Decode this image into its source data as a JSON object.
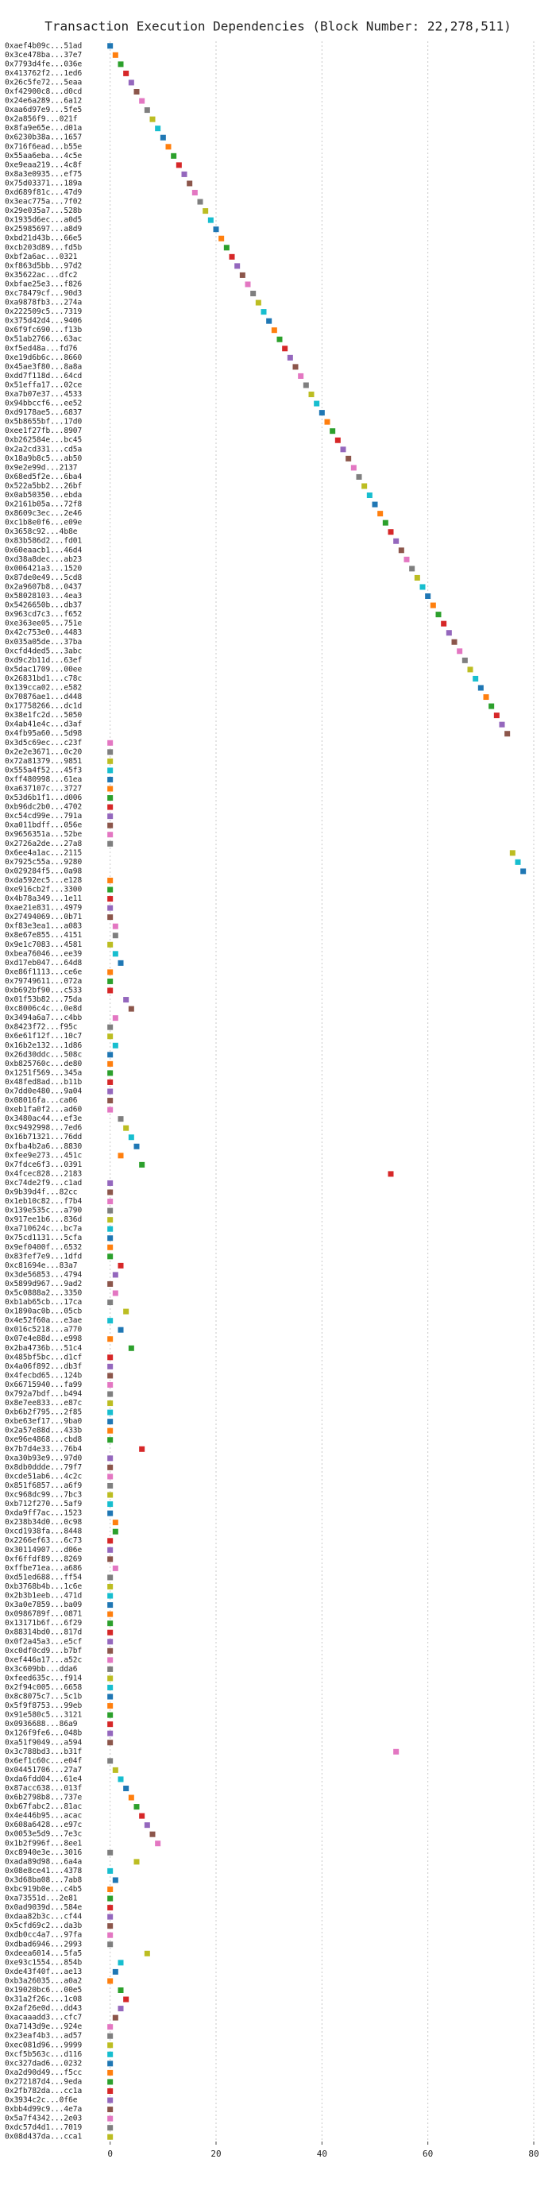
{
  "chart_data": {
    "type": "dot",
    "title": "Transaction Execution Dependencies (Block Number: 22,278,511)",
    "categories": [
      "0xaef4b09c...51ad",
      "0x3ce478ba...37e7",
      "0x7793d4fe...036e",
      "0x413762f2...1ed6",
      "0x26c5fe72...5eaa",
      "0xf42900c8...d0cd",
      "0x24e6a289...6a12",
      "0xaa6d97e9...5fe5",
      "0x2a856f9...021f",
      "0x8fa9e65e...d01a",
      "0x6230b38a...1657",
      "0x716f6ead...b55e",
      "0x55aa6eba...4c5e",
      "0xe9eaa219...4c8f",
      "0x8a3e0935...ef75",
      "0x75d03371...189a",
      "0xd689f81c...47d9",
      "0x3eac775a...7f02",
      "0x29e035a7...528b",
      "0x1935d6ec...a0d5",
      "0x25985697...a8d9",
      "0xbd21d43b...66e5",
      "0xcb203d89...fd5b",
      "0xbf2a6ac...0321",
      "0xf863d5bb...97d2",
      "0x35622ac...dfc2",
      "0xbfae25e3...f826",
      "0xc78479cf...90d3",
      "0xa9878fb3...274a",
      "0x222509c5...7319",
      "0x375d42d4...9406",
      "0x6f9fc690...f13b",
      "0x51ab2766...63ac",
      "0xf5ed48a...fd76",
      "0xe19d6b6c...8660",
      "0x45ae3f80...8a8a",
      "0xdd7f118d...64cd",
      "0x51effa17...02ce",
      "0xa7b07e37...4533",
      "0x94bbccf6...ee52",
      "0xd9178ae5...6837",
      "0x5b8655bf...17d0",
      "0xee1f27fb...8907",
      "0xb262584e...bc45",
      "0x2a2cd331...cd5a",
      "0x18a9b8c5...ab50",
      "0x9e2e99d...2137",
      "0x68ed5f2e...6ba4",
      "0x522a5bb2...26bf",
      "0x0ab50350...ebda",
      "0x2161b05a...72f8",
      "0x8609c3ec...2e46",
      "0xc1b8e0f6...e09e",
      "0x3658c92...4b8e",
      "0x83b586d2...fd01",
      "0x60eaacb1...46d4",
      "0xd38a8dec...ab23",
      "0x006421a3...1520",
      "0x87de0e49...5cd8",
      "0x2a9607b8...0437",
      "0x58028103...4ea3",
      "0x5426650b...db37",
      "0x963cd7c3...f652",
      "0xe363ee05...751e",
      "0x42c753e0...4483",
      "0x035a05de...37ba",
      "0xcfd4ded5...3abc",
      "0xd9c2b11d...63ef",
      "0x5dac1709...00ee",
      "0x26831bd1...c78c",
      "0x139cca02...e582",
      "0x70876ae1...d448",
      "0x17758266...dc1d",
      "0x38e1fc2d...5050",
      "0x4ab41e4c...d3af",
      "0x4fb95a60...5d98",
      "0x3d5c69ec...c23f",
      "0x2e2e3671...0c20",
      "0x72a81379...9851",
      "0x555a4f52...45f3",
      "0xff480998...61ea",
      "0xa637107c...3727",
      "0x53d6b1f1...d006",
      "0xb96dc2b0...4702",
      "0xc54cd99e...791a",
      "0xa011bdff...056e",
      "0x9656351a...52be",
      "0x2726a2de...27a8",
      "0x6ee4a1ac...2115",
      "0x7925c55a...9280",
      "0x029284f5...0a98",
      "0xda592ec5...e128",
      "0xe916cb2f...3300",
      "0x4b78a349...1e11",
      "0xae21e831...4979",
      "0x27494069...0b71",
      "0xf83e3ea1...a083",
      "0x8e67e855...4151",
      "0x9e1c7083...4581",
      "0xbea76046...ee39",
      "0xd17eb047...64d8",
      "0xe86f1113...ce6e",
      "0x79749611...072a",
      "0xb692bf90...c533",
      "0x01f53b82...75da",
      "0xc8006c4c...0e8d",
      "0x3494a6a7...c4bb",
      "0x8423f72...f95c",
      "0x6e61f12f...10c7",
      "0x16b2e132...1d86",
      "0x26d30ddc...508c",
      "0xb825760c...de80",
      "0x1251f569...345a",
      "0x48fed8ad...b11b",
      "0x7dd0e480...9a04",
      "0x08016fa...ca06",
      "0xeb1fa0f2...ad60",
      "0x3480ac44...ef3e",
      "0xc9492998...7ed6",
      "0x16b71321...76dd",
      "0xfba4b2a6...8830",
      "0xfee9e273...451c",
      "0x7fdce6f3...0391",
      "0x4fcec828...2183",
      "0xc74de2f9...c1ad",
      "0x9b39d4f...82cc",
      "0x1eb10c82...f7b4",
      "0x139e535c...a790",
      "0x917ee1b6...836d",
      "0xa710624c...bc7a",
      "0x75cd1131...5cfa",
      "0x9ef0400f...6532",
      "0x83fef7e9...1dfd",
      "0xc81694e...83a7",
      "0x3de56853...4794",
      "0x5899d967...9ad2",
      "0x5c0888a2...3350",
      "0xb1ab65cb...17ca",
      "0x1890ac0b...05cb",
      "0x4e52f60a...e3ae",
      "0x016c5218...a770",
      "0x07e4e88d...e998",
      "0x2ba4736b...51c4",
      "0x485bf5bc...d1cf",
      "0x4a06f892...db3f",
      "0x4fecbd65...124b",
      "0x66715940...fa99",
      "0x792a7bdf...b494",
      "0x8e7ee833...e87c",
      "0xb6b2f795...2f85",
      "0xbe63ef17...9ba0",
      "0x2a57e88d...433b",
      "0xe96e4868...cbd8",
      "0x7b7d4e33...76b4",
      "0xa30b93e9...97d0",
      "0x8db0ddde...79f7",
      "0xcde51ab6...4c2c",
      "0x851f6857...a6f9",
      "0xc968dc99...7bc3",
      "0xb712f270...5af9",
      "0xda9ff7ac...1523",
      "0x238b34d0...0c98",
      "0xcd1938fa...8448",
      "0x2266ef63...6c73",
      "0x30114907...d06e",
      "0xf6ffdf89...8269",
      "0xffbe71ea...a686",
      "0xd51ed688...ff54",
      "0xb3768b4b...1c6e",
      "0x2b3b1eeb...471d",
      "0x3a0e7859...ba09",
      "0x0986789f...0871",
      "0x13171b6f...6f29",
      "0x88314bd0...817d",
      "0x0f2a45a3...e5cf",
      "0xc0df0cd9...b7bf",
      "0xef446a17...a52c",
      "0x3c609bb...dda6",
      "0xfeed635c...f914",
      "0x2f94c005...6658",
      "0x8c8075c7...5c1b",
      "0x5f9f8753...99eb",
      "0x91e580c5...3121",
      "0x0936688...86a9",
      "0x126f9fe6...048b",
      "0xa51f9049...a594",
      "0x3c788bd3...b31f",
      "0x6ef1c60c...e04f",
      "0x04451706...27a7",
      "0xda6fdd04...61e4",
      "0x87acc638...013f",
      "0x6b2798b8...737e",
      "0xb67fabc2...81ac",
      "0x4e446b95...acac",
      "0x608a6428...e97c",
      "0x0053e5d9...7e3c",
      "0x1b2f996f...8ee1",
      "0xc8940e3e...3016",
      "0xada89d98...6a4a",
      "0x08e8ce41...4378",
      "0x3d68ba08...7ab8",
      "0xbc919b0e...c4b5",
      "0xa73551d...2e81",
      "0x0ad9039d...584e",
      "0xdaa82b3c...cf44",
      "0x5cfd69c2...da3b",
      "0xdb0cc4a7...97fa",
      "0xdbad6946...2993",
      "0xdeea6014...5fa5",
      "0xe93c1554...854b",
      "0xde43f40f...ae13",
      "0xb3a26035...a0a2",
      "0x19020bc6...00e5",
      "0x31a2f26c...1c08",
      "0x2af26e0d...dd43",
      "0xacaaadd3...cfc7",
      "0xa7143d9e...924e",
      "0x23eaf4b3...ad57",
      "0xec081d96...9999",
      "0xcf5b563c...d116",
      "0xc327dad6...0232",
      "0xa2d90d49...f5cc",
      "0x272187d4...9eda",
      "0x2fb782da...cc1a",
      "0x3934c2c...0f6e",
      "0xbb4d99c9...4e7a",
      "0x5a7f4342...2e03",
      "0xdc57d4d1...7019",
      "0x08d437da...cca1"
    ],
    "values": [
      0,
      1,
      2,
      3,
      4,
      5,
      6,
      7,
      8,
      9,
      10,
      11,
      12,
      13,
      14,
      15,
      16,
      17,
      18,
      19,
      20,
      21,
      22,
      23,
      24,
      25,
      26,
      27,
      28,
      29,
      30,
      31,
      32,
      33,
      34,
      35,
      36,
      37,
      38,
      39,
      40,
      41,
      42,
      43,
      44,
      45,
      46,
      47,
      48,
      49,
      50,
      51,
      52,
      53,
      54,
      55,
      56,
      57,
      58,
      59,
      60,
      61,
      62,
      63,
      64,
      65,
      66,
      67,
      68,
      69,
      70,
      71,
      72,
      73,
      74,
      75,
      0,
      0,
      0,
      0,
      0,
      0,
      0,
      0,
      0,
      0,
      0,
      0,
      76,
      77,
      78,
      0,
      0,
      0,
      0,
      0,
      1,
      1,
      0,
      1,
      2,
      0,
      0,
      0,
      3,
      4,
      1,
      0,
      0,
      1,
      0,
      0,
      0,
      0,
      0,
      0,
      0,
      2,
      3,
      4,
      5,
      2,
      6,
      53,
      0,
      0,
      0,
      0,
      0,
      0,
      0,
      0,
      0,
      2,
      1,
      0,
      1,
      0,
      3,
      0,
      2,
      0,
      4,
      0,
      0,
      0,
      0,
      0,
      0,
      0,
      0,
      0,
      0,
      6,
      0,
      0,
      0,
      0,
      0,
      0,
      0,
      1,
      1,
      0,
      0,
      0,
      1,
      0,
      0,
      0,
      0,
      0,
      0,
      0,
      0,
      0,
      0,
      0,
      0,
      0,
      0,
      0,
      0,
      0,
      0,
      0,
      54,
      0,
      1,
      2,
      3,
      4,
      5,
      6,
      7,
      8,
      9,
      0,
      5,
      0,
      1,
      0,
      0,
      0,
      0,
      0,
      0,
      0,
      7,
      2,
      1,
      0,
      2,
      3,
      2,
      1,
      0,
      0,
      0,
      0,
      0,
      0,
      0,
      0,
      0,
      0,
      0,
      0,
      0
    ],
    "palette": [
      "#1f77b4",
      "#ff7f0e",
      "#2ca02c",
      "#d62728",
      "#9467bd",
      "#8c564b",
      "#e377c2",
      "#7f7f7f",
      "#bcbd22",
      "#17becf"
    ],
    "xlim": [
      -2.5,
      83
    ],
    "xticks": [
      0,
      20,
      40,
      60,
      80
    ],
    "grid": true
  }
}
